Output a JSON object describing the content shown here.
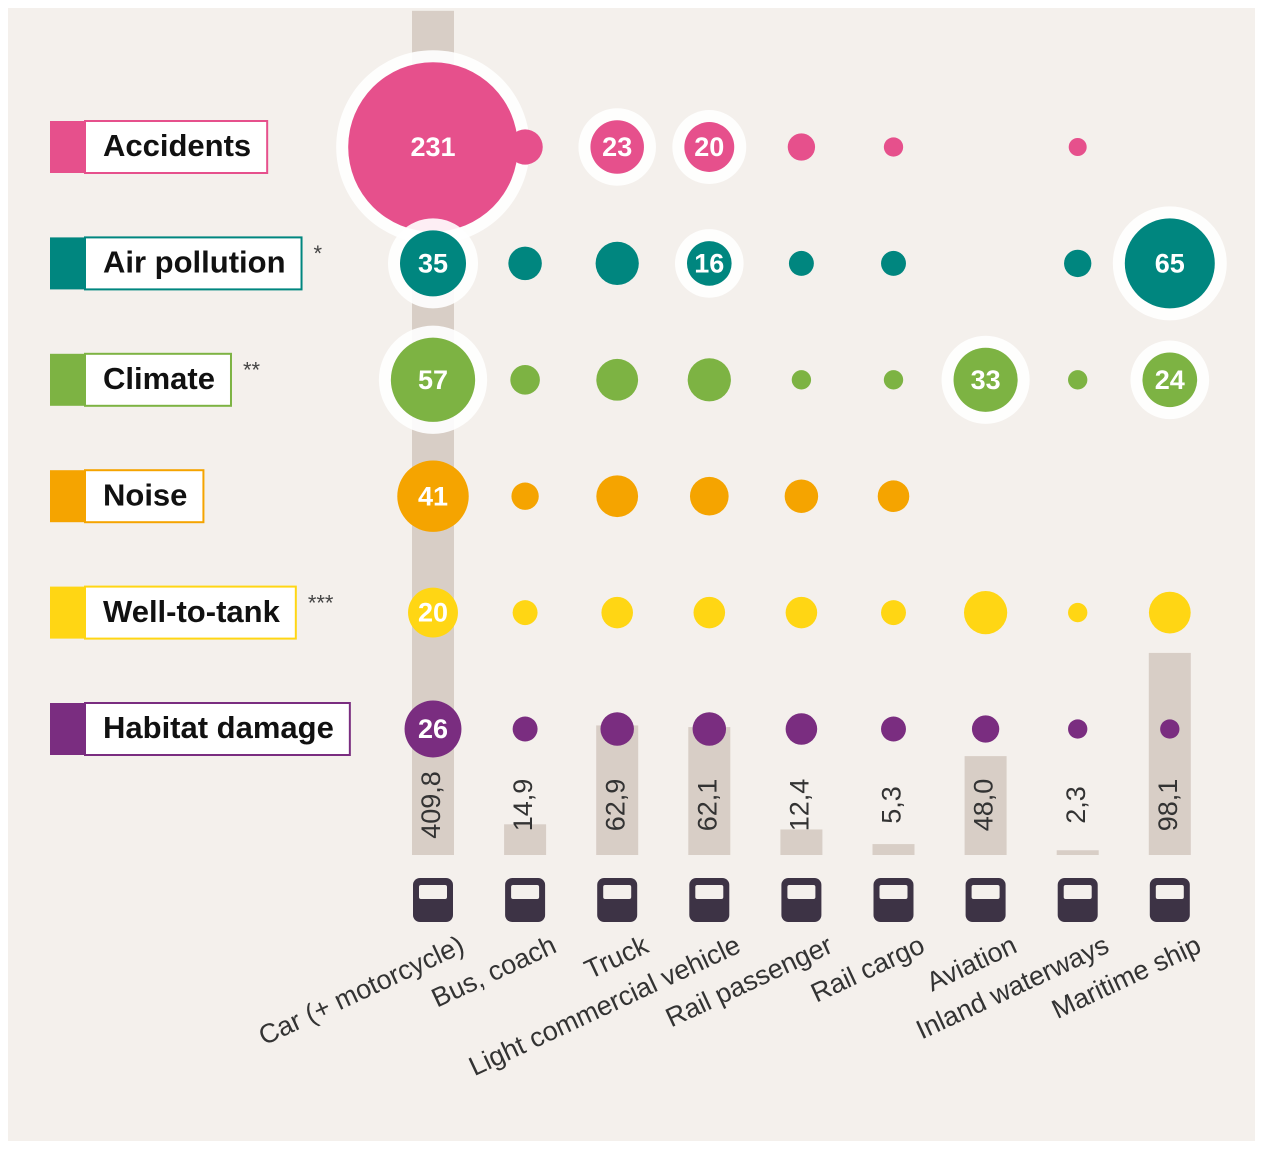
{
  "chart_data": {
    "type": "bubble-matrix",
    "categories": [
      "Car (+ motorcycle)",
      "Bus, coach",
      "Truck",
      "Light commercial vehicle",
      "Rail passenger",
      "Rail cargo",
      "Aviation",
      "Inland waterways",
      "Maritime ship"
    ],
    "series": [
      {
        "name": "Accidents",
        "color": "#e6508c",
        "values": [
          231,
          10,
          23,
          20,
          6,
          3,
          null,
          2.6,
          null
        ],
        "value_labels": [
          "231",
          null,
          "23",
          "20",
          null,
          null,
          null,
          null,
          null
        ]
      },
      {
        "name": "Air pollution",
        "note": "*",
        "color": "#00867f",
        "values": [
          35,
          9,
          15,
          16,
          5,
          5,
          null,
          6,
          65
        ],
        "value_labels": [
          "35",
          null,
          null,
          "16",
          null,
          null,
          null,
          null,
          "65"
        ]
      },
      {
        "name": "Climate",
        "note": "**",
        "color": "#7db343",
        "values": [
          57,
          7,
          14,
          15,
          3,
          3,
          33,
          3,
          24
        ],
        "value_labels": [
          "57",
          null,
          null,
          null,
          null,
          null,
          "33",
          null,
          "24"
        ]
      },
      {
        "name": "Noise",
        "color": "#f5a400",
        "values": [
          41,
          6,
          14,
          12,
          9,
          8,
          null,
          null,
          null
        ],
        "value_labels": [
          "41",
          null,
          null,
          null,
          null,
          null,
          null,
          null,
          null
        ]
      },
      {
        "name": "Well-to-tank",
        "note": "***",
        "color": "#ffd614",
        "values": [
          20,
          5,
          8,
          8,
          8,
          5,
          15,
          3,
          14
        ],
        "value_labels": [
          "20",
          null,
          null,
          null,
          null,
          null,
          null,
          null,
          null
        ]
      },
      {
        "name": "Habitat damage",
        "color": "#7a2d80",
        "values": [
          26,
          5,
          9,
          9,
          8,
          5,
          6,
          3,
          3
        ],
        "value_labels": [
          "26",
          null,
          null,
          null,
          null,
          null,
          null,
          null,
          null
        ]
      }
    ],
    "totals": {
      "color": "#d8cec6",
      "values": [
        409.8,
        14.9,
        62.9,
        62.1,
        12.4,
        5.3,
        48.0,
        2.3,
        98.1
      ],
      "value_labels": [
        "409,8",
        "14,9",
        "62,9",
        "62,1",
        "12,4",
        "5,3",
        "48,0",
        "2,3",
        "98,1"
      ]
    }
  }
}
